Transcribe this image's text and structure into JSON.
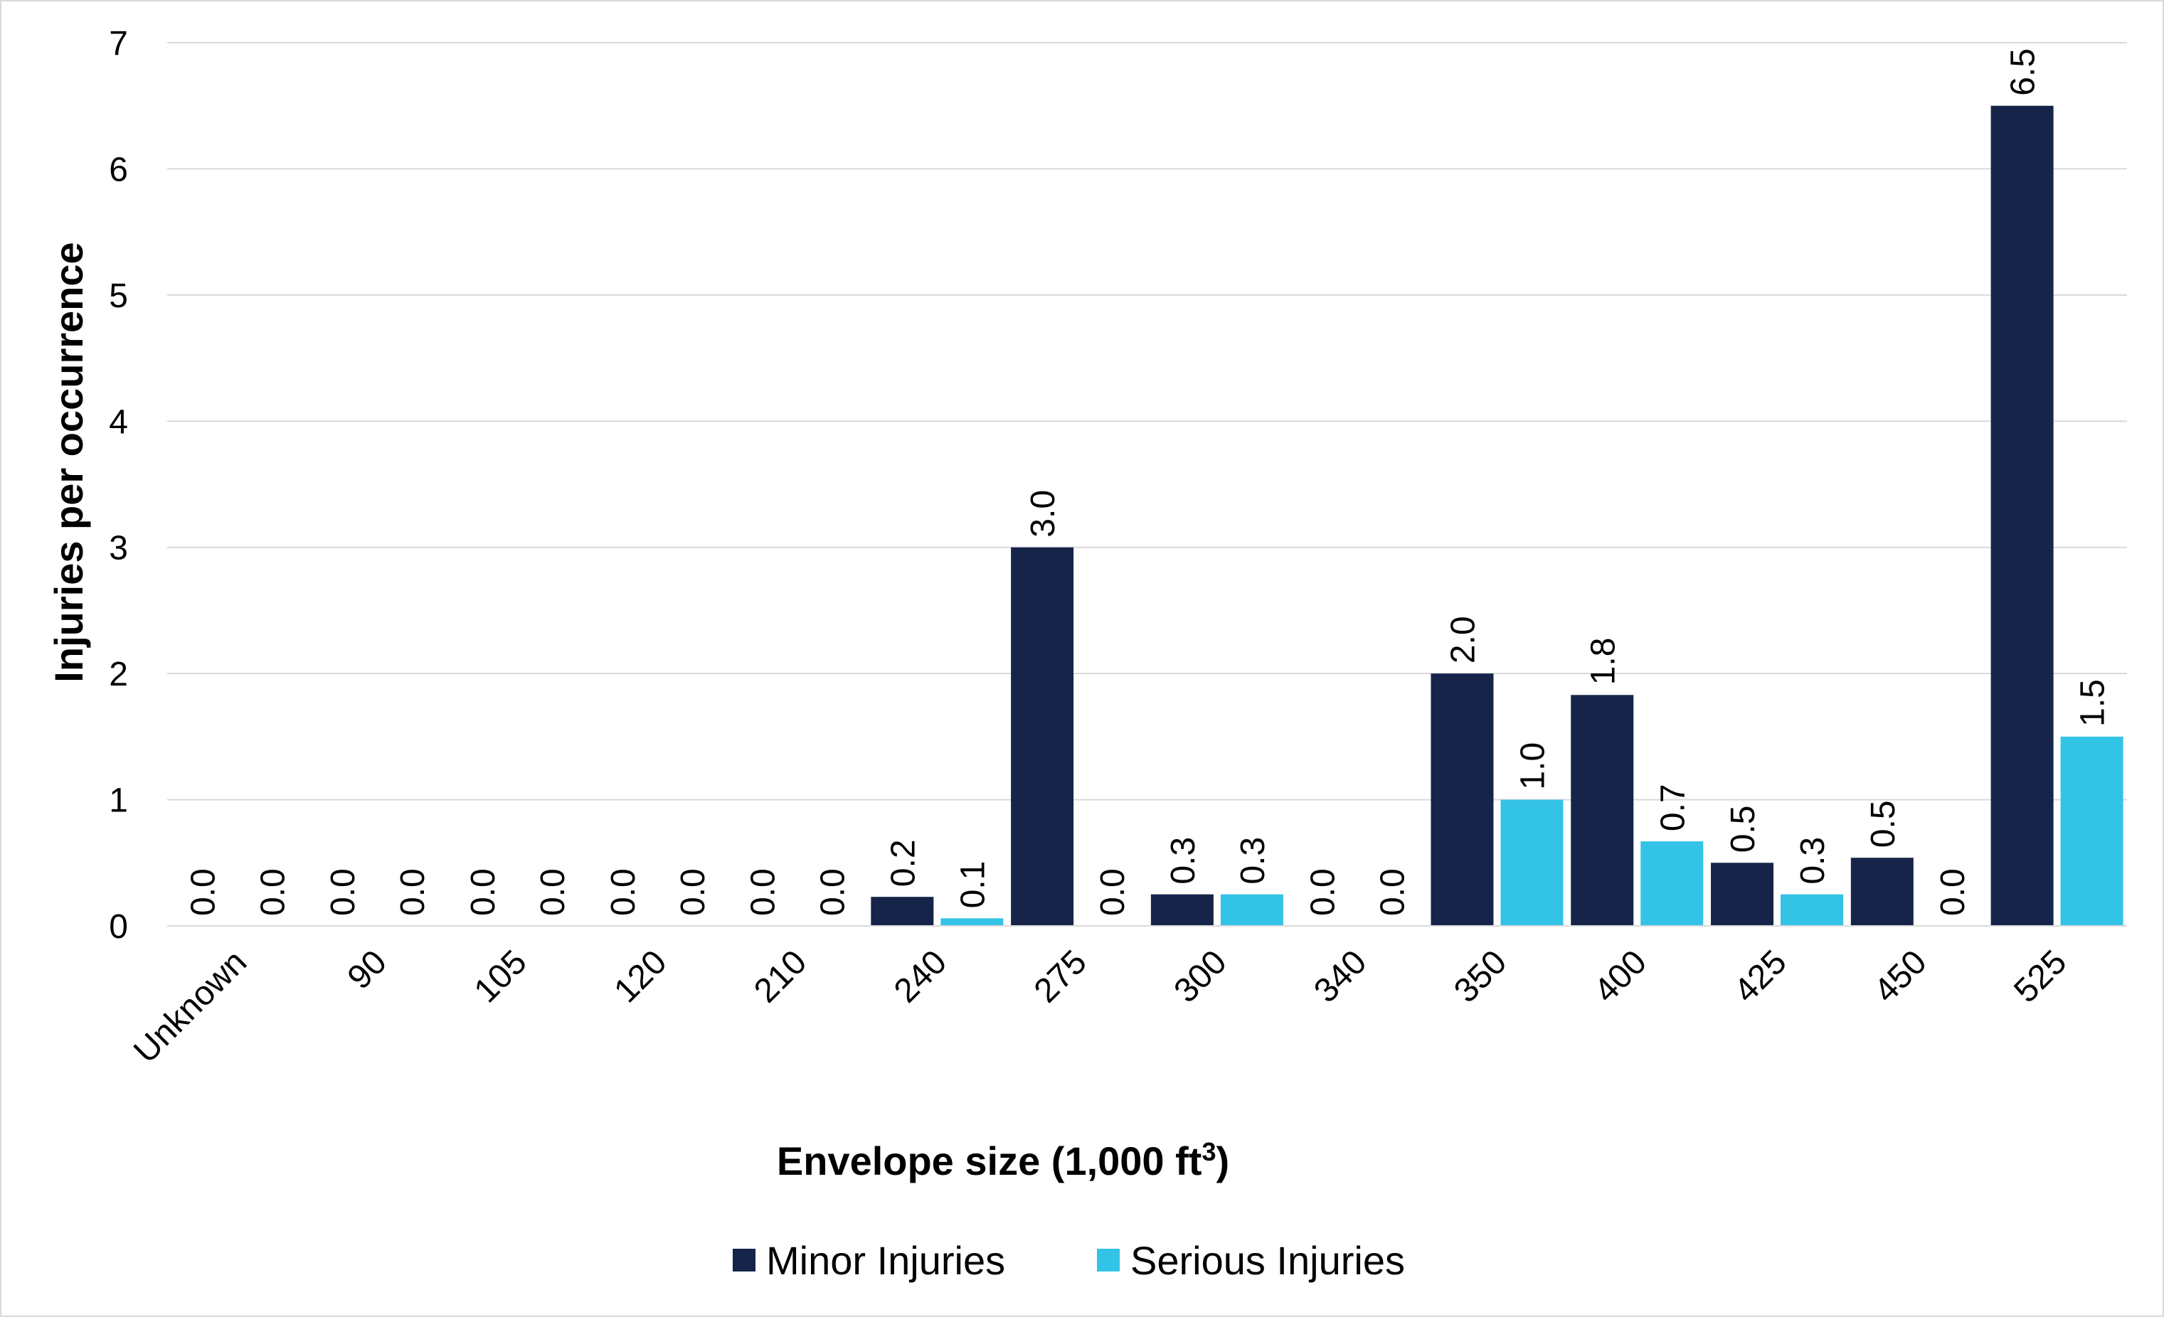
{
  "chart_data": {
    "type": "bar",
    "title": "",
    "xlabel": "Envelope size (1,000 ft",
    "xlabel_superscript": "3",
    "xlabel_suffix": ")",
    "ylabel": "Injuries per occurrence",
    "ylim": [
      0,
      7
    ],
    "yticks": [
      0,
      1,
      2,
      3,
      4,
      5,
      6,
      7
    ],
    "grid": true,
    "legend_position": "bottom",
    "categories": [
      "Unknown",
      "90",
      "105",
      "120",
      "210",
      "240",
      "275",
      "300",
      "340",
      "350",
      "400",
      "425",
      "450",
      "525"
    ],
    "series": [
      {
        "name": "Minor Injuries",
        "color": "#16244a",
        "values": [
          0.0,
          0.0,
          0.0,
          0.0,
          0.0,
          0.23,
          3.0,
          0.25,
          0.0,
          2.0,
          1.83,
          0.5,
          0.54,
          6.5
        ],
        "labels": [
          "0.0",
          "0.0",
          "0.0",
          "0.0",
          "0.0",
          "0.2",
          "3.0",
          "0.3",
          "0.0",
          "2.0",
          "1.8",
          "0.5",
          "0.5",
          "6.5"
        ]
      },
      {
        "name": "Serious Injuries",
        "color": "#33c3e6",
        "values": [
          0.0,
          0.0,
          0.0,
          0.0,
          0.0,
          0.06,
          0.0,
          0.25,
          0.0,
          1.0,
          0.67,
          0.25,
          0.0,
          1.5
        ],
        "labels": [
          "0.0",
          "0.0",
          "0.0",
          "0.0",
          "0.0",
          "0.1",
          "0.0",
          "0.3",
          "0.0",
          "1.0",
          "0.7",
          "0.3",
          "0.0",
          "1.5"
        ]
      }
    ]
  }
}
